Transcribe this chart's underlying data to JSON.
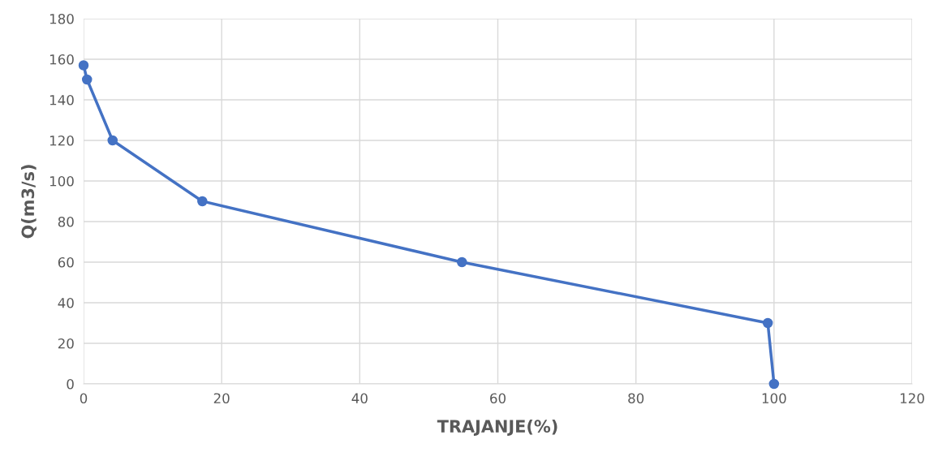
{
  "chart_data": {
    "type": "line",
    "xlabel": "TRAJANJE(%)",
    "ylabel": "Q(m3/s)",
    "series": [
      {
        "color": "#4472c4",
        "x": [
          0,
          0.5,
          4.2,
          17.2,
          54.8,
          99.1,
          100
        ],
        "values": [
          157,
          150,
          120,
          90,
          60,
          30,
          0
        ]
      }
    ],
    "xlim": [
      0,
      120
    ],
    "xticks": [
      0,
      20,
      40,
      60,
      80,
      100,
      120
    ],
    "ylim": [
      0,
      180
    ],
    "yticks": [
      0,
      20,
      40,
      60,
      80,
      100,
      120,
      140,
      160,
      180
    ],
    "grid": true,
    "marker": "circle",
    "line_style": "solid"
  }
}
